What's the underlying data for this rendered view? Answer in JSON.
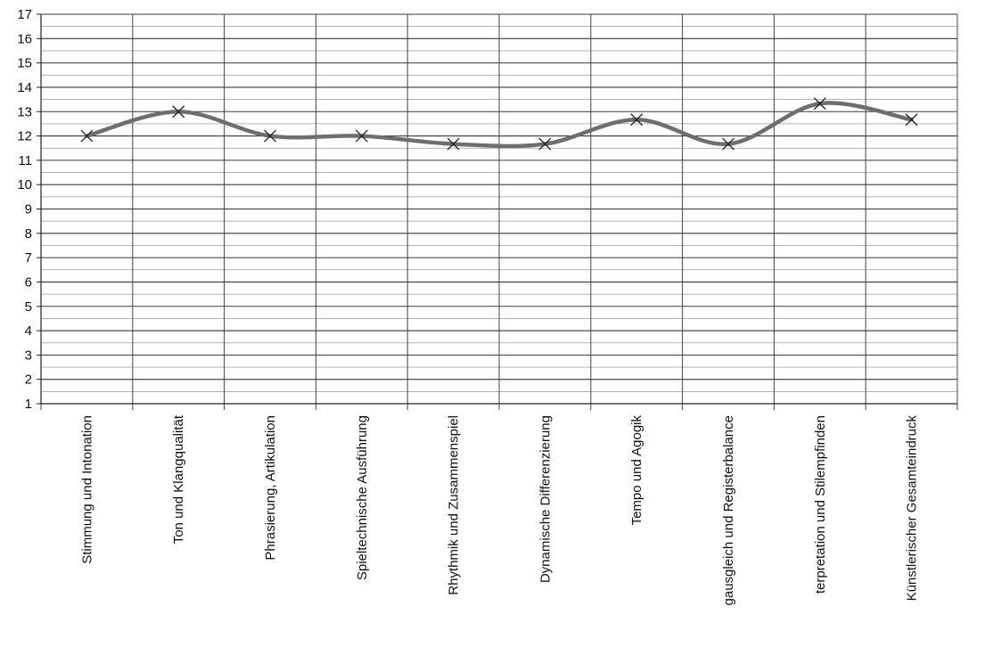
{
  "chart_data": {
    "type": "line",
    "title": "",
    "xlabel": "",
    "ylabel": "",
    "ylim": [
      1,
      17
    ],
    "yticks": [
      1,
      2,
      3,
      4,
      5,
      6,
      7,
      8,
      9,
      10,
      11,
      12,
      13,
      14,
      15,
      16,
      17
    ],
    "grid": true,
    "minor_grid": true,
    "smooth": true,
    "marker": "x",
    "categories": [
      "Stimmung und Intonation",
      "Ton und Klangqualität",
      "Phrasierung, Artikulation",
      "Spieltechnische Ausführung",
      "Rhythmik und Zusammenspiel",
      "Dynamische Differenzierung",
      "Tempo und Agogik",
      "gausgleich und Registerbalance",
      "terpretation und Stilempfinden",
      "Künstlerischer Gesamteindruck"
    ],
    "series": [
      {
        "values": [
          12,
          13,
          12,
          12,
          11.67,
          11.67,
          12.67,
          11.67,
          13.33,
          12.67
        ],
        "color": "#6e6e6e"
      }
    ]
  }
}
